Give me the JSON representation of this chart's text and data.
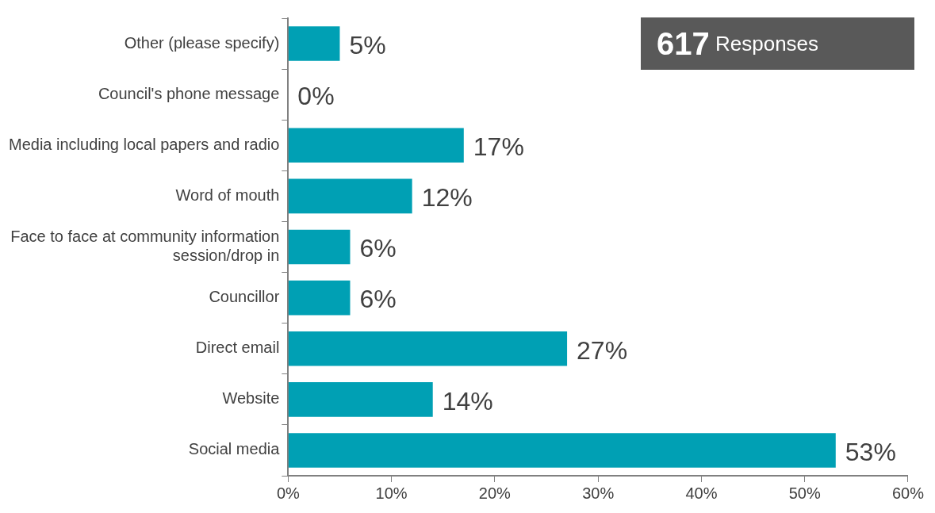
{
  "chart_data": {
    "type": "bar",
    "orientation": "horizontal",
    "categories": [
      "Other (please specify)",
      "Council's phone message",
      "Media including local papers and radio",
      "Word of mouth",
      "Face to face at community information session/drop in",
      "Councillor",
      "Direct email",
      "Website",
      "Social media"
    ],
    "values": [
      5,
      0,
      17,
      12,
      6,
      6,
      27,
      14,
      53
    ],
    "value_labels": [
      "5%",
      "0%",
      "17%",
      "12%",
      "6%",
      "6%",
      "27%",
      "14%",
      "53%"
    ],
    "color": "#00a0b4",
    "xlim": [
      0,
      60
    ],
    "xticks": [
      {
        "value": 0,
        "label": "0%"
      },
      {
        "value": 10,
        "label": "10%"
      },
      {
        "value": 20,
        "label": "20%"
      },
      {
        "value": 30,
        "label": "30%"
      },
      {
        "value": 40,
        "label": "40%"
      },
      {
        "value": 50,
        "label": "50%"
      },
      {
        "value": 60,
        "label": "60%"
      }
    ],
    "annotations": [
      "617 Responses"
    ],
    "legend": false
  }
}
